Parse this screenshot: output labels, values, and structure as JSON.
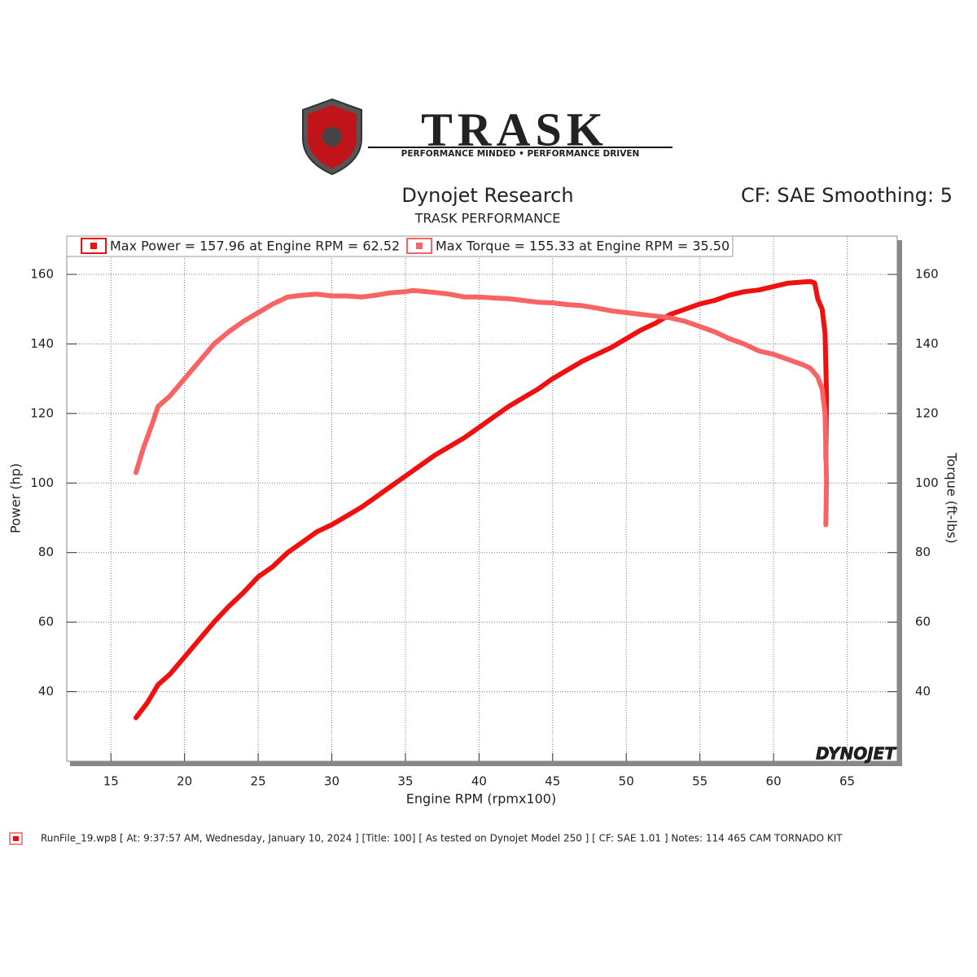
{
  "logo": {
    "name": "TRASK",
    "tagline": "PERFORMANCE MINDED • PERFORMANCE DRIVEN"
  },
  "watermark": "DYNOJET",
  "footer": "RunFile_19.wp8 [ At: 9:37:57 AM, Wednesday, January 10, 2024 ] [Title: 100]  [ As tested on Dynojet Model 250 ] [ CF: SAE 1.01 ] Notes: 114 465 CAM TORNADO KIT",
  "chart_data": {
    "type": "line",
    "title": "Dynojet Research",
    "subtitle": "TRASK PERFORMANCE",
    "annotation": "CF: SAE Smoothing: 5",
    "x_label": "Engine RPM (rpmx100)",
    "y_label": "Power (hp)",
    "y2_label": "Torque (ft-lbs)",
    "xlim": [
      12,
      68.4
    ],
    "xticks": [
      15,
      20,
      25,
      30,
      35,
      40,
      45,
      50,
      55,
      60,
      65
    ],
    "ylim": [
      20,
      171
    ],
    "yticks": [
      40,
      60,
      80,
      100,
      120,
      140,
      160
    ],
    "y2lim": [
      20,
      171
    ],
    "y2ticks": [
      40,
      60,
      80,
      100,
      120,
      140,
      160
    ],
    "grid": true,
    "legend": "top",
    "series": [
      {
        "name": "Max Power = 157.96 at Engine RPM = 62.52",
        "color": "#f01010",
        "x": [
          16.7,
          17.5,
          18.2,
          19,
          20,
          21,
          22,
          23,
          24,
          25,
          26,
          27,
          28,
          29,
          30,
          31,
          32,
          33,
          34,
          35,
          36,
          37,
          38,
          39,
          40,
          41,
          42,
          43,
          44,
          45,
          46,
          47,
          48,
          49,
          50,
          51,
          52,
          53,
          54,
          55,
          56,
          57,
          58,
          59,
          60,
          61,
          62,
          62.5,
          62.8,
          63,
          63.3,
          63.5,
          63.6,
          63.55
        ],
        "values": [
          32.5,
          37,
          42,
          45,
          50,
          55,
          60,
          64.5,
          68.5,
          73,
          76,
          80,
          83,
          86,
          88,
          90.5,
          93,
          96,
          99,
          102,
          105,
          108,
          110.5,
          113,
          116,
          119,
          122,
          124.5,
          127,
          130,
          132.5,
          135,
          137,
          139,
          141.5,
          144,
          146,
          148.5,
          150,
          151.5,
          152.5,
          154,
          155,
          155.5,
          156.5,
          157.5,
          157.8,
          157.96,
          157.5,
          153,
          150,
          143,
          125,
          107
        ]
      },
      {
        "name": "Max Torque = 155.33 at Engine RPM = 35.50",
        "color": "#f86464",
        "axis": "y2",
        "x": [
          16.7,
          17.2,
          17.8,
          18.2,
          19,
          20,
          21,
          22,
          23,
          24,
          25,
          26,
          27,
          28,
          29,
          30,
          31,
          32,
          33,
          34,
          35,
          35.5,
          36,
          37,
          38,
          39,
          40,
          41,
          42,
          43,
          44,
          45,
          46,
          47,
          48,
          49,
          50,
          51,
          52,
          53,
          54,
          55,
          56,
          57,
          58,
          59,
          60,
          61,
          62,
          62.5,
          63,
          63.3,
          63.5,
          63.6,
          63.55
        ],
        "values": [
          103,
          110,
          117,
          122,
          125,
          130,
          135,
          140,
          143.5,
          146.5,
          149,
          151.5,
          153.5,
          154,
          154.3,
          153.8,
          153.8,
          153.5,
          154,
          154.7,
          155,
          155.33,
          155.2,
          154.8,
          154.3,
          153.5,
          153.5,
          153.2,
          153,
          152.5,
          152,
          151.8,
          151.3,
          151,
          150.3,
          149.5,
          149,
          148.5,
          148,
          147.5,
          146.5,
          145,
          143.5,
          141.5,
          140,
          138,
          137,
          135.5,
          134,
          133,
          130.5,
          127,
          120,
          100,
          88
        ]
      }
    ]
  }
}
